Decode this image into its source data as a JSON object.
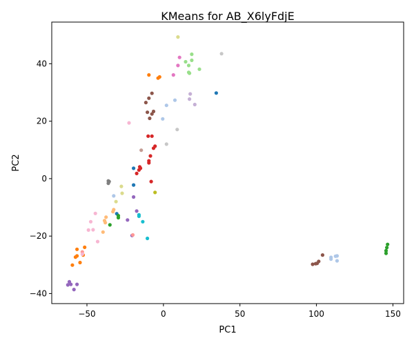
{
  "chart_data": {
    "type": "scatter",
    "title": "KMeans for AB_X6lyFdjE",
    "xlabel": "PC1",
    "ylabel": "PC2",
    "xlim": [
      -73,
      157
    ],
    "ylim": [
      -43.5,
      54.5
    ],
    "xticks": [
      -50,
      0,
      50,
      100,
      150
    ],
    "yticks": [
      -40,
      -20,
      0,
      20,
      40
    ],
    "grid": false,
    "series": [
      {
        "color": "#1f77b4",
        "points": [
          [
            34.5,
            29.8
          ],
          [
            -19.5,
            3.6
          ],
          [
            -19.5,
            -2.2
          ],
          [
            -30.5,
            -12.2
          ]
        ]
      },
      {
        "color": "#ff7f0e",
        "points": [
          [
            -9.5,
            36.1
          ],
          [
            -2.5,
            35.4
          ],
          [
            -3.5,
            35.0
          ],
          [
            -56.5,
            -24.6
          ],
          [
            -51.5,
            -23.9
          ],
          [
            -54.5,
            -29.2
          ],
          [
            -52.5,
            -26.6
          ],
          [
            -57.5,
            -27.3
          ],
          [
            -56.5,
            -26.9
          ],
          [
            -59.5,
            -30.1
          ]
        ]
      },
      {
        "color": "#2ca02c",
        "points": [
          [
            146.5,
            -22.9
          ],
          [
            146.0,
            -24.0
          ],
          [
            145.5,
            -25.1
          ],
          [
            145.5,
            -26.0
          ],
          [
            -29.5,
            -13.6
          ],
          [
            -29.5,
            -12.9
          ],
          [
            -35.0,
            -16.1
          ]
        ]
      },
      {
        "color": "#d62728",
        "points": [
          [
            -15.5,
            4.1
          ],
          [
            -15.0,
            3.6
          ],
          [
            -16.0,
            3.0
          ],
          [
            -17.5,
            1.8
          ],
          [
            -8.5,
            7.9
          ],
          [
            -9.5,
            6.2
          ],
          [
            -9.5,
            5.5
          ],
          [
            -10.0,
            14.8
          ],
          [
            -7.5,
            14.8
          ],
          [
            -5.5,
            11.3
          ],
          [
            -6.5,
            10.6
          ],
          [
            -8.0,
            -1.0
          ]
        ]
      },
      {
        "color": "#9467bd",
        "points": [
          [
            -61.5,
            -35.9
          ],
          [
            -62.5,
            -37.0
          ],
          [
            -60.5,
            -36.8
          ],
          [
            -56.5,
            -36.8
          ],
          [
            -58.5,
            -38.6
          ],
          [
            -23.5,
            -14.4
          ],
          [
            -20.5,
            -19.8
          ],
          [
            -17.5,
            -11.3
          ],
          [
            -19.5,
            -6.4
          ]
        ]
      },
      {
        "color": "#8c564b",
        "points": [
          [
            -7.5,
            29.7
          ],
          [
            -9.5,
            28.0
          ],
          [
            -11.5,
            26.5
          ],
          [
            -10.5,
            23.1
          ],
          [
            -6.5,
            23.4
          ],
          [
            -7.5,
            22.5
          ],
          [
            -9.0,
            21.0
          ],
          [
            104.0,
            -26.6
          ],
          [
            101.5,
            -28.8
          ],
          [
            100.5,
            -29.5
          ],
          [
            97.5,
            -29.8
          ],
          [
            99.5,
            -29.6
          ]
        ]
      },
      {
        "color": "#e377c2",
        "points": [
          [
            10.5,
            42.2
          ],
          [
            9.5,
            39.4
          ],
          [
            6.5,
            36.1
          ]
        ]
      },
      {
        "color": "#7f7f7f",
        "points": [
          [
            -36.0,
            -0.8
          ],
          [
            -35.5,
            -1.0
          ],
          [
            -36.0,
            -1.6
          ]
        ]
      },
      {
        "color": "#bcbd22",
        "points": [
          [
            -5.5,
            -4.8
          ]
        ]
      },
      {
        "color": "#17becf",
        "points": [
          [
            -16.0,
            -12.6
          ],
          [
            -16.0,
            -13.1
          ],
          [
            -13.5,
            -15.0
          ],
          [
            -10.5,
            -20.8
          ]
        ]
      },
      {
        "color": "#aec7e8",
        "points": [
          [
            -32.5,
            -6.0
          ],
          [
            2.0,
            25.5
          ],
          [
            7.5,
            27.3
          ],
          [
            -0.5,
            20.8
          ],
          [
            109.5,
            -27.4
          ],
          [
            109.5,
            -28.0
          ],
          [
            112.5,
            -27.0
          ],
          [
            113.5,
            -26.9
          ],
          [
            113.5,
            -28.6
          ]
        ]
      },
      {
        "color": "#ffbb78",
        "points": [
          [
            -32.5,
            -10.8
          ],
          [
            -33.0,
            -11.5
          ],
          [
            -37.5,
            -13.4
          ],
          [
            -38.5,
            -14.6
          ],
          [
            -38.0,
            -15.3
          ],
          [
            -39.5,
            -18.6
          ]
        ]
      },
      {
        "color": "#98df8a",
        "points": [
          [
            18.5,
            43.3
          ],
          [
            18.5,
            41.2
          ],
          [
            14.5,
            40.7
          ],
          [
            16.5,
            39.4
          ],
          [
            23.5,
            38.1
          ],
          [
            16.5,
            37.0
          ],
          [
            17.0,
            36.7
          ]
        ]
      },
      {
        "color": "#ff9896",
        "points": [
          [
            -20.0,
            -19.6
          ],
          [
            -53.0,
            -25.5
          ]
        ]
      },
      {
        "color": "#c5b0d5",
        "points": [
          [
            17.5,
            29.5
          ],
          [
            17.0,
            27.7
          ],
          [
            20.5,
            25.8
          ]
        ]
      },
      {
        "color": "#c49c94",
        "points": [
          [
            -14.5,
            9.9
          ]
        ]
      },
      {
        "color": "#f7b6d2",
        "points": [
          [
            -22.5,
            19.4
          ],
          [
            -44.5,
            -12.1
          ],
          [
            -47.5,
            -15.0
          ],
          [
            -46.0,
            -17.8
          ],
          [
            -49.0,
            -17.9
          ],
          [
            -43.0,
            -21.9
          ],
          [
            -53.0,
            -26.3
          ]
        ]
      },
      {
        "color": "#c7c7c7",
        "points": [
          [
            38.0,
            43.5
          ],
          [
            9.0,
            17.1
          ],
          [
            2.0,
            12.0
          ]
        ]
      },
      {
        "color": "#dbdb8d",
        "points": [
          [
            9.5,
            49.3
          ],
          [
            -27.5,
            -2.7
          ],
          [
            -27.0,
            -5.1
          ],
          [
            -31.0,
            -8.0
          ]
        ]
      },
      {
        "color": "#9edae5",
        "points": []
      }
    ]
  }
}
